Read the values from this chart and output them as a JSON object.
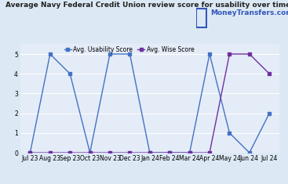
{
  "title": "Average Navy Federal Credit Union review score for usability over time",
  "x_labels": [
    "Jul 23",
    "Aug 23",
    "Sep 23",
    "Oct 23",
    "Nov 23",
    "Dec 23",
    "Jan 24",
    "Feb 24",
    "Mar 24",
    "Apr 24",
    "May 24",
    "Jun 24",
    "Jul 24"
  ],
  "usability_scores": [
    0,
    5,
    4,
    0,
    5,
    5,
    0,
    0,
    0,
    5,
    1,
    0,
    2
  ],
  "wise_scores": [
    0,
    0,
    0,
    0,
    0,
    0,
    0,
    0,
    0,
    0,
    5,
    5,
    4
  ],
  "usability_color": "#4472c4",
  "wise_color": "#7030a0",
  "fig_bg_color": "#dce9f5",
  "plot_bg_color": "#e4ecf7",
  "ylim": [
    0,
    5.5
  ],
  "yticks": [
    0,
    1,
    2,
    3,
    4,
    5
  ],
  "legend_usability": "Avg. Usability Score",
  "legend_wise": "Avg. Wise Score",
  "watermark": "MoneyTransfers.com",
  "title_fontsize": 6.5,
  "axis_fontsize": 5.5,
  "legend_fontsize": 5.5
}
